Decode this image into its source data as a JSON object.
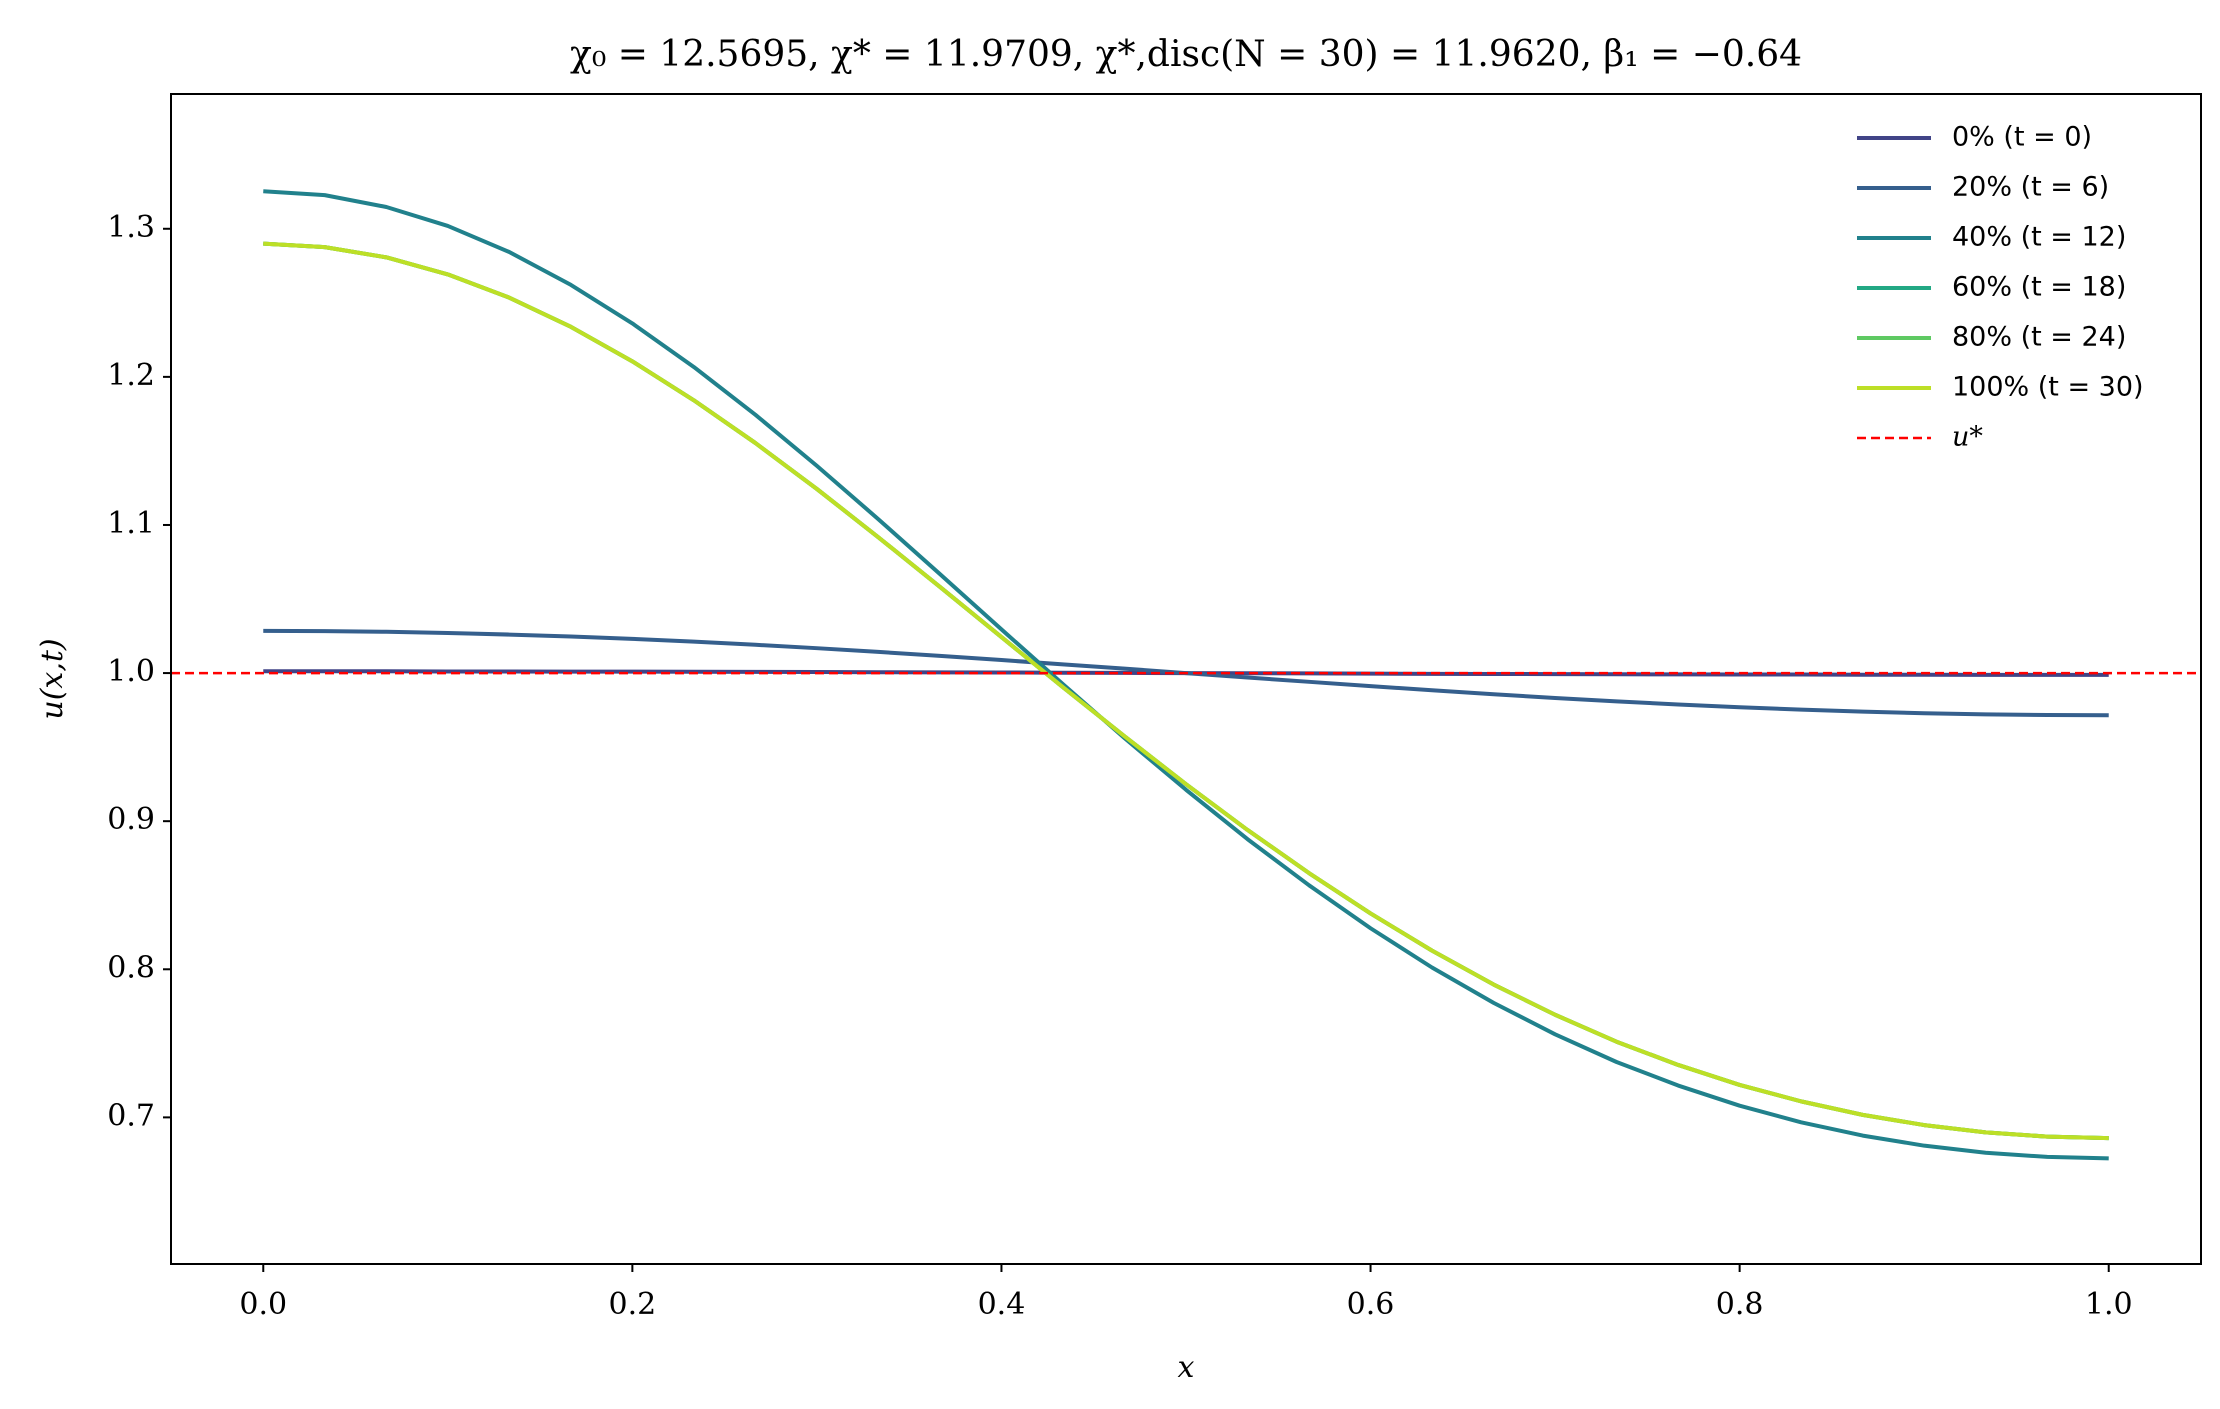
{
  "chart_data": {
    "type": "line",
    "title": "χ₀ = 12.5695,  χ* = 11.9709,  χ*,disc(N = 30) = 11.9620,  β₁ = −0.64",
    "x_label": "x",
    "y_label": "u(x,t)",
    "x": [
      0,
      0.0333,
      0.0667,
      0.1,
      0.1333,
      0.1667,
      0.2,
      0.2333,
      0.2667,
      0.3,
      0.3333,
      0.3667,
      0.4,
      0.4333,
      0.4667,
      0.5,
      0.5333,
      0.5667,
      0.6,
      0.6333,
      0.6667,
      0.7,
      0.7333,
      0.7667,
      0.8,
      0.8333,
      0.8667,
      0.9,
      0.9333,
      0.9667,
      1
    ],
    "series": [
      {
        "name": "0% (t = 0)",
        "color": "#414487",
        "values": [
          1.0012,
          1.0012,
          1.0012,
          1.0011,
          1.0011,
          1.001,
          1.001,
          1.0009,
          1.0008,
          1.0007,
          1.0006,
          1.0005,
          1.0004,
          1.0002,
          1.0001,
          1.0,
          0.9999,
          0.9998,
          0.9996,
          0.9995,
          0.9994,
          0.9993,
          0.9992,
          0.9991,
          0.999,
          0.999,
          0.9989,
          0.9989,
          0.9988,
          0.9988,
          0.9988
        ]
      },
      {
        "name": "20% (t = 6)",
        "color": "#355f8d",
        "values": [
          1.0285,
          1.0283,
          1.0279,
          1.0271,
          1.026,
          1.0247,
          1.0231,
          1.0212,
          1.0191,
          1.0168,
          1.0143,
          1.0116,
          1.0088,
          1.0059,
          1.003,
          1.0,
          0.997,
          0.9941,
          0.9912,
          0.9884,
          0.9857,
          0.9832,
          0.9809,
          0.9788,
          0.9769,
          0.9753,
          0.974,
          0.9729,
          0.9721,
          0.9717,
          0.9715
        ]
      },
      {
        "name": "40% (t = 12)",
        "color": "#21818c",
        "values": [
          1.3253,
          1.3227,
          1.3147,
          1.3019,
          1.2843,
          1.2621,
          1.2361,
          1.2067,
          1.1744,
          1.1399,
          1.1039,
          1.0668,
          1.0295,
          0.9925,
          0.9561,
          0.9212,
          0.8879,
          0.8567,
          0.8277,
          0.8012,
          0.7773,
          0.7561,
          0.7374,
          0.7215,
          0.7079,
          0.6967,
          0.6877,
          0.6809,
          0.6761,
          0.6733,
          0.6723
        ]
      },
      {
        "name": "60% (t = 18)",
        "color": "#22a884",
        "values": [
          1.29,
          1.2876,
          1.2807,
          1.2692,
          1.2535,
          1.2338,
          1.2105,
          1.1842,
          1.1553,
          1.1243,
          1.0917,
          1.0582,
          1.0243,
          0.9905,
          0.9573,
          0.925,
          0.8941,
          0.8649,
          0.8377,
          0.8126,
          0.7897,
          0.7693,
          0.7511,
          0.7354,
          0.7219,
          0.7108,
          0.7017,
          0.6948,
          0.6899,
          0.687,
          0.686
        ]
      },
      {
        "name": "80% (t = 24)",
        "color": "#5ec962",
        "values": [
          1.29,
          1.2876,
          1.2807,
          1.2692,
          1.2535,
          1.2338,
          1.2105,
          1.1842,
          1.1553,
          1.1243,
          1.0917,
          1.0582,
          1.0243,
          0.9905,
          0.9573,
          0.925,
          0.8941,
          0.8649,
          0.8377,
          0.8126,
          0.7897,
          0.7693,
          0.7511,
          0.7354,
          0.7219,
          0.7108,
          0.7017,
          0.6948,
          0.6899,
          0.687,
          0.686
        ]
      },
      {
        "name": "100% (t = 30)",
        "color": "#bddf26",
        "values": [
          1.29,
          1.2876,
          1.2807,
          1.2692,
          1.2535,
          1.2338,
          1.2105,
          1.1842,
          1.1553,
          1.1243,
          1.0917,
          1.0582,
          1.0243,
          0.9905,
          0.9573,
          0.925,
          0.8941,
          0.8649,
          0.8377,
          0.8126,
          0.7897,
          0.7693,
          0.7511,
          0.7354,
          0.7219,
          0.7108,
          0.7017,
          0.6948,
          0.6899,
          0.687,
          0.686
        ]
      }
    ],
    "reference": {
      "name": "u*",
      "value": 1,
      "color": "#ff0000"
    },
    "xlim": [
      -0.05,
      1.05
    ],
    "ylim": [
      0.601,
      1.391
    ],
    "xticks": [
      {
        "value": 0,
        "label": "0.0"
      },
      0.2,
      0.4,
      0.6,
      0.8,
      {
        "value": 1,
        "label": "1.0"
      }
    ],
    "yticks": [
      0.7,
      0.8,
      0.9,
      {
        "value": 1,
        "label": "1.0"
      },
      1.1,
      1.2,
      1.3
    ],
    "legend": "upper right"
  }
}
